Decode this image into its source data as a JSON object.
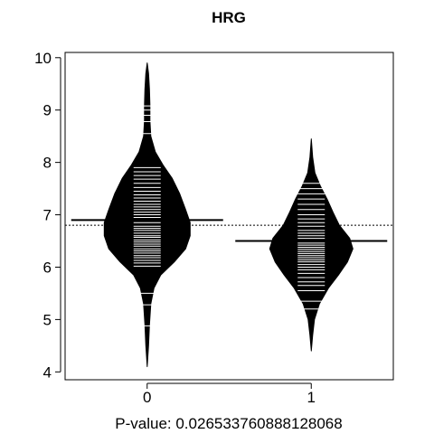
{
  "chart_data": {
    "type": "beanplot",
    "title": "HRG",
    "xlabel": "P-value: 0.026533760888128068",
    "ylabel": "",
    "categories": [
      "0",
      "1"
    ],
    "ylim": [
      3.85,
      10.1
    ],
    "yticks": [
      4,
      5,
      6,
      7,
      8,
      9,
      10
    ],
    "overall_reference_line": 6.8,
    "grid": false,
    "legend": "none",
    "series": [
      {
        "category": "0",
        "group_mean": 6.9,
        "density_range": [
          4.1,
          9.9
        ],
        "density_profile": [
          [
            4.1,
            0.0
          ],
          [
            4.5,
            0.03
          ],
          [
            4.9,
            0.05
          ],
          [
            5.3,
            0.08
          ],
          [
            5.6,
            0.15
          ],
          [
            5.85,
            0.3
          ],
          [
            6.1,
            0.6
          ],
          [
            6.35,
            0.85
          ],
          [
            6.6,
            0.95
          ],
          [
            6.85,
            0.95
          ],
          [
            7.1,
            0.85
          ],
          [
            7.4,
            0.72
          ],
          [
            7.7,
            0.55
          ],
          [
            7.95,
            0.35
          ],
          [
            8.2,
            0.18
          ],
          [
            8.5,
            0.08
          ],
          [
            8.8,
            0.06
          ],
          [
            9.1,
            0.06
          ],
          [
            9.4,
            0.05
          ],
          [
            9.7,
            0.03
          ],
          [
            9.9,
            0.0
          ]
        ],
        "observations": [
          4.88,
          5.28,
          5.5,
          6.02,
          6.08,
          6.13,
          6.18,
          6.22,
          6.27,
          6.31,
          6.35,
          6.4,
          6.44,
          6.48,
          6.52,
          6.57,
          6.6,
          6.65,
          6.7,
          6.74,
          6.78,
          6.85,
          6.9,
          6.95,
          7.0,
          7.05,
          7.1,
          7.15,
          7.2,
          7.26,
          7.32,
          7.38,
          7.45,
          7.52,
          7.6,
          7.68,
          7.75,
          7.82,
          7.9,
          8.55,
          8.78,
          8.9,
          9.0,
          9.08
        ]
      },
      {
        "category": "1",
        "group_mean": 6.5,
        "density_range": [
          4.4,
          8.45
        ],
        "density_profile": [
          [
            4.4,
            0.0
          ],
          [
            4.7,
            0.03
          ],
          [
            5.0,
            0.07
          ],
          [
            5.3,
            0.18
          ],
          [
            5.6,
            0.38
          ],
          [
            5.85,
            0.6
          ],
          [
            6.1,
            0.8
          ],
          [
            6.35,
            0.92
          ],
          [
            6.55,
            0.85
          ],
          [
            6.8,
            0.62
          ],
          [
            7.05,
            0.48
          ],
          [
            7.3,
            0.35
          ],
          [
            7.55,
            0.2
          ],
          [
            7.8,
            0.08
          ],
          [
            8.1,
            0.03
          ],
          [
            8.45,
            0.0
          ]
        ],
        "observations": [
          5.2,
          5.35,
          5.55,
          5.65,
          5.72,
          5.8,
          5.88,
          5.95,
          6.0,
          6.05,
          6.1,
          6.14,
          6.18,
          6.22,
          6.26,
          6.3,
          6.34,
          6.38,
          6.42,
          6.46,
          6.5,
          6.55,
          6.6,
          6.65,
          6.7,
          6.78,
          6.85,
          6.92,
          7.0,
          7.1,
          7.2,
          7.3,
          7.4,
          7.5,
          7.6
        ]
      }
    ]
  }
}
